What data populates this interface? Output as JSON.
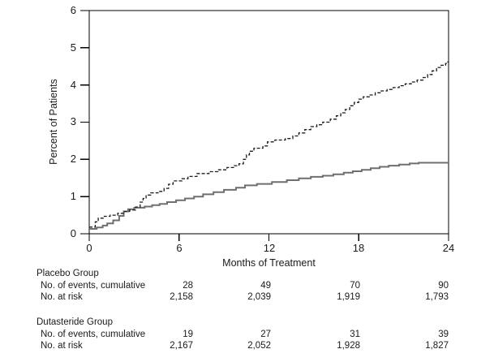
{
  "axes": {
    "ylabel": "Percent of Patients",
    "xlabel": "Months of Treatment",
    "ytick_labels": [
      "6",
      "5",
      "4",
      "3",
      "2",
      "1",
      "0"
    ],
    "xtick_labels": [
      "0",
      "6",
      "12",
      "18",
      "24"
    ]
  },
  "chart_data": {
    "type": "line",
    "subtype": "kaplan-meier-step",
    "title": "",
    "xlabel": "Months of Treatment",
    "ylabel": "Percent of Patients",
    "xlim": [
      0,
      24
    ],
    "ylim": [
      0,
      6
    ],
    "xticks": [
      0,
      6,
      12,
      18,
      24
    ],
    "yticks": [
      0,
      1,
      2,
      3,
      4,
      5,
      6
    ],
    "grid": false,
    "legend_position": "none",
    "frame": "full-box",
    "series": [
      {
        "id": "placebo",
        "name": "Placebo Group",
        "style": "dashed",
        "color": "#1c1c1c",
        "width": 1.3,
        "dash": "4 2.2",
        "points": [
          [
            0,
            0.18
          ],
          [
            0.4,
            0.32
          ],
          [
            0.6,
            0.42
          ],
          [
            1.0,
            0.47
          ],
          [
            1.4,
            0.5
          ],
          [
            1.9,
            0.55
          ],
          [
            2.3,
            0.6
          ],
          [
            2.7,
            0.64
          ],
          [
            3.1,
            0.72
          ],
          [
            3.4,
            0.85
          ],
          [
            3.6,
            0.95
          ],
          [
            3.8,
            1.04
          ],
          [
            4.1,
            1.1
          ],
          [
            4.6,
            1.14
          ],
          [
            5.0,
            1.22
          ],
          [
            5.3,
            1.33
          ],
          [
            5.6,
            1.42
          ],
          [
            6.2,
            1.48
          ],
          [
            6.6,
            1.54
          ],
          [
            7.2,
            1.62
          ],
          [
            8.0,
            1.67
          ],
          [
            8.6,
            1.72
          ],
          [
            9.2,
            1.78
          ],
          [
            9.7,
            1.83
          ],
          [
            10.0,
            1.88
          ],
          [
            10.3,
            2.0
          ],
          [
            10.5,
            2.12
          ],
          [
            10.7,
            2.22
          ],
          [
            11.0,
            2.3
          ],
          [
            11.6,
            2.36
          ],
          [
            11.9,
            2.47
          ],
          [
            12.4,
            2.52
          ],
          [
            13.1,
            2.56
          ],
          [
            13.6,
            2.63
          ],
          [
            14.0,
            2.71
          ],
          [
            14.4,
            2.8
          ],
          [
            14.8,
            2.88
          ],
          [
            15.2,
            2.93
          ],
          [
            15.6,
            3.0
          ],
          [
            16.1,
            3.08
          ],
          [
            16.5,
            3.17
          ],
          [
            16.8,
            3.25
          ],
          [
            17.1,
            3.34
          ],
          [
            17.4,
            3.44
          ],
          [
            17.7,
            3.53
          ],
          [
            18.0,
            3.62
          ],
          [
            18.3,
            3.68
          ],
          [
            18.7,
            3.73
          ],
          [
            19.1,
            3.79
          ],
          [
            19.5,
            3.84
          ],
          [
            19.9,
            3.88
          ],
          [
            20.3,
            3.93
          ],
          [
            20.7,
            3.98
          ],
          [
            21.1,
            4.03
          ],
          [
            21.5,
            4.08
          ],
          [
            21.9,
            4.13
          ],
          [
            22.3,
            4.2
          ],
          [
            22.6,
            4.28
          ],
          [
            22.9,
            4.38
          ],
          [
            23.2,
            4.47
          ],
          [
            23.5,
            4.53
          ],
          [
            23.8,
            4.58
          ],
          [
            23.95,
            4.62
          ]
        ]
      },
      {
        "id": "dutasteride",
        "name": "Dutasteride Group",
        "style": "solid",
        "color": "#6f6f6f",
        "width": 2,
        "dash": "",
        "points": [
          [
            0,
            0.13
          ],
          [
            0.5,
            0.17
          ],
          [
            0.9,
            0.22
          ],
          [
            1.2,
            0.28
          ],
          [
            1.6,
            0.36
          ],
          [
            2.0,
            0.48
          ],
          [
            2.3,
            0.6
          ],
          [
            2.6,
            0.66
          ],
          [
            3.0,
            0.7
          ],
          [
            3.7,
            0.73
          ],
          [
            4.2,
            0.77
          ],
          [
            4.7,
            0.8
          ],
          [
            5.2,
            0.85
          ],
          [
            5.8,
            0.9
          ],
          [
            6.4,
            0.95
          ],
          [
            7.0,
            1.0
          ],
          [
            7.6,
            1.06
          ],
          [
            8.3,
            1.12
          ],
          [
            9.0,
            1.18
          ],
          [
            9.8,
            1.24
          ],
          [
            10.4,
            1.3
          ],
          [
            11.2,
            1.34
          ],
          [
            12.2,
            1.39
          ],
          [
            13.2,
            1.44
          ],
          [
            14.0,
            1.49
          ],
          [
            14.8,
            1.53
          ],
          [
            15.6,
            1.56
          ],
          [
            16.3,
            1.6
          ],
          [
            17.0,
            1.64
          ],
          [
            17.6,
            1.68
          ],
          [
            18.2,
            1.72
          ],
          [
            18.8,
            1.76
          ],
          [
            19.4,
            1.8
          ],
          [
            20.0,
            1.83
          ],
          [
            20.7,
            1.86
          ],
          [
            21.4,
            1.89
          ],
          [
            22.0,
            1.91
          ]
        ]
      }
    ]
  },
  "risk_table": {
    "timepoints": [
      "6",
      "12",
      "18",
      "24"
    ],
    "groups": [
      {
        "name": "Placebo Group",
        "rows": [
          {
            "label": "No. of events, cumulative",
            "values": [
              "28",
              "49",
              "70",
              "90"
            ]
          },
          {
            "label": "No. at risk",
            "values": [
              "2,158",
              "2,039",
              "1,919",
              "1,793"
            ]
          }
        ]
      },
      {
        "name": "Dutasteride Group",
        "rows": [
          {
            "label": "No. of events, cumulative",
            "values": [
              "19",
              "27",
              "31",
              "39"
            ]
          },
          {
            "label": "No. at risk",
            "values": [
              "2,167",
              "2,052",
              "1,928",
              "1,827"
            ]
          }
        ]
      }
    ]
  }
}
